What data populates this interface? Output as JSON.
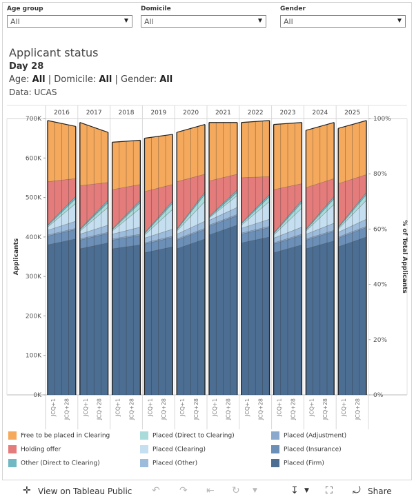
{
  "filters": [
    {
      "label": "Age group",
      "value": "All"
    },
    {
      "label": "Domicile",
      "value": "All"
    },
    {
      "label": "Gender",
      "value": "All"
    }
  ],
  "header": {
    "title": "Applicant status",
    "day": "Day 28",
    "age_label": "Age: ",
    "age_value": "All",
    "dom_label": " | Domicile: ",
    "dom_value": "All",
    "gender_label": " | Gender: ",
    "gender_value": "All",
    "source": "Data: UCAS"
  },
  "chart_data": {
    "type": "area",
    "title": "Applicant status",
    "ylabel": "Applicants",
    "y2label": "% of Total Applicants",
    "ylim": [
      0,
      700000
    ],
    "y2lim": [
      0,
      100
    ],
    "yticks": [
      "0K",
      "100K",
      "200K",
      "300K",
      "400K",
      "500K",
      "600K",
      "700K"
    ],
    "y2ticks": [
      "0%",
      "20%",
      "40%",
      "60%",
      "80%",
      "100%"
    ],
    "years": [
      "2016",
      "2017",
      "2018",
      "2019",
      "2020",
      "2021",
      "2022",
      "2023",
      "2024",
      "2025"
    ],
    "day_ticks": [
      "JCQ+1",
      "JCQ+28"
    ],
    "colors": {
      "free": "#f5a95c",
      "holding": "#e57c7c",
      "other_direct": "#71b7c4",
      "placed_direct": "#a8dbd9",
      "placed_clearing": "#c5dff0",
      "placed_other": "#9dbcdc",
      "placed_adjustment": "#8aa9cc",
      "placed_insurance": "#6b8fb6",
      "placed_firm": "#4d6e93"
    },
    "series_order": [
      "placed_firm",
      "placed_insurance",
      "placed_adjustment",
      "placed_other",
      "placed_clearing",
      "placed_direct",
      "other_direct",
      "holding",
      "free"
    ],
    "series_names": {
      "free": "Free to be placed in Clearing",
      "holding": "Holding offer",
      "other_direct": "Other (Direct to Clearing)",
      "placed_direct": "Placed (Direct to Clearing)",
      "placed_clearing": "Placed (Clearing)",
      "placed_other": "Placed (Other)",
      "placed_adjustment": "Placed (Adjustment)",
      "placed_insurance": "Placed (Insurance)",
      "placed_firm": "Placed (Firm)"
    },
    "panels": [
      {
        "year": "2016",
        "total": [
          695000,
          680000
        ],
        "placed_firm": [
          380000,
          395000
        ],
        "placed_insurance": [
          22000,
          24000
        ],
        "placed_adjustment": [
          3000,
          3000
        ],
        "placed_other": [
          12000,
          18000
        ],
        "placed_clearing": [
          8000,
          45000
        ],
        "placed_direct": [
          3000,
          12000
        ],
        "other_direct": [
          2000,
          6000
        ],
        "holding": [
          110000,
          45000
        ]
      },
      {
        "year": "2017",
        "total": [
          690000,
          665000
        ],
        "placed_firm": [
          370000,
          385000
        ],
        "placed_insurance": [
          22000,
          24000
        ],
        "placed_adjustment": [
          3000,
          3000
        ],
        "placed_other": [
          12000,
          18000
        ],
        "placed_clearing": [
          8000,
          45000
        ],
        "placed_direct": [
          3000,
          12000
        ],
        "other_direct": [
          2000,
          6000
        ],
        "holding": [
          110000,
          45000
        ]
      },
      {
        "year": "2018",
        "total": [
          640000,
          645000
        ],
        "placed_firm": [
          370000,
          380000
        ],
        "placed_insurance": [
          22000,
          24000
        ],
        "placed_adjustment": [
          3000,
          3000
        ],
        "placed_other": [
          12000,
          18000
        ],
        "placed_clearing": [
          8000,
          48000
        ],
        "placed_direct": [
          3000,
          14000
        ],
        "other_direct": [
          2000,
          6000
        ],
        "holding": [
          100000,
          40000
        ]
      },
      {
        "year": "2019",
        "total": [
          650000,
          660000
        ],
        "placed_firm": [
          360000,
          375000
        ],
        "placed_insurance": [
          22000,
          24000
        ],
        "placed_adjustment": [
          3000,
          3000
        ],
        "placed_other": [
          12000,
          18000
        ],
        "placed_clearing": [
          8000,
          50000
        ],
        "placed_direct": [
          3000,
          15000
        ],
        "other_direct": [
          2000,
          6000
        ],
        "holding": [
          105000,
          42000
        ]
      },
      {
        "year": "2020",
        "total": [
          665000,
          685000
        ],
        "placed_firm": [
          370000,
          395000
        ],
        "placed_insurance": [
          22000,
          24000
        ],
        "placed_adjustment": [
          3000,
          3000
        ],
        "placed_other": [
          12000,
          18000
        ],
        "placed_clearing": [
          8000,
          50000
        ],
        "placed_direct": [
          3000,
          18000
        ],
        "other_direct": [
          2000,
          6000
        ],
        "holding": [
          120000,
          45000
        ]
      },
      {
        "year": "2021",
        "total": [
          690000,
          690000
        ],
        "placed_firm": [
          405000,
          430000
        ],
        "placed_insurance": [
          22000,
          24000
        ],
        "placed_adjustment": [
          3000,
          3000
        ],
        "placed_other": [
          12000,
          18000
        ],
        "placed_clearing": [
          6000,
          30000
        ],
        "placed_direct": [
          2000,
          8000
        ],
        "other_direct": [
          2000,
          6000
        ],
        "holding": [
          90000,
          40000
        ]
      },
      {
        "year": "2022",
        "total": [
          690000,
          695000
        ],
        "placed_firm": [
          385000,
          400000
        ],
        "placed_insurance": [
          22000,
          24000
        ],
        "placed_adjustment": [
          3000,
          3000
        ],
        "placed_other": [
          12000,
          18000
        ],
        "placed_clearing": [
          8000,
          45000
        ],
        "placed_direct": [
          3000,
          12000
        ],
        "other_direct": [
          2000,
          6000
        ],
        "holding": [
          115000,
          45000
        ]
      },
      {
        "year": "2023",
        "total": [
          685000,
          690000
        ],
        "placed_firm": [
          360000,
          380000
        ],
        "placed_insurance": [
          22000,
          24000
        ],
        "placed_adjustment": [
          3000,
          3000
        ],
        "placed_other": [
          12000,
          18000
        ],
        "placed_clearing": [
          8000,
          48000
        ],
        "placed_direct": [
          3000,
          14000
        ],
        "other_direct": [
          2000,
          6000
        ],
        "holding": [
          110000,
          42000
        ]
      },
      {
        "year": "2024",
        "total": [
          670000,
          690000
        ],
        "placed_firm": [
          370000,
          390000
        ],
        "placed_insurance": [
          22000,
          24000
        ],
        "placed_adjustment": [
          3000,
          3000
        ],
        "placed_other": [
          12000,
          18000
        ],
        "placed_clearing": [
          8000,
          48000
        ],
        "placed_direct": [
          3000,
          14000
        ],
        "other_direct": [
          2000,
          6000
        ],
        "holding": [
          105000,
          45000
        ]
      },
      {
        "year": "2025",
        "total": [
          675000,
          695000
        ],
        "placed_firm": [
          375000,
          400000
        ],
        "placed_insurance": [
          22000,
          24000
        ],
        "placed_adjustment": [
          3000,
          3000
        ],
        "placed_other": [
          12000,
          18000
        ],
        "placed_clearing": [
          8000,
          48000
        ],
        "placed_direct": [
          3000,
          14000
        ],
        "other_direct": [
          2000,
          6000
        ],
        "holding": [
          110000,
          45000
        ]
      }
    ]
  },
  "legend": [
    {
      "key": "free",
      "label": "Free to be placed in Clearing"
    },
    {
      "key": "holding",
      "label": "Holding offer"
    },
    {
      "key": "other_direct",
      "label": "Other (Direct to Clearing)"
    },
    {
      "key": "placed_direct",
      "label": "Placed (Direct to Clearing)"
    },
    {
      "key": "placed_clearing",
      "label": "Placed (Clearing)"
    },
    {
      "key": "placed_other",
      "label": "Placed (Other)"
    },
    {
      "key": "placed_adjustment",
      "label": "Placed (Adjustment)"
    },
    {
      "key": "placed_insurance",
      "label": "Placed (Insurance)"
    },
    {
      "key": "placed_firm",
      "label": "Placed (Firm)"
    }
  ],
  "toolbar": {
    "view_label": "View on Tableau Public",
    "share_label": "Share",
    "tableau_icon": "tableau-logo-icon",
    "undo_icon": "undo-icon",
    "redo_icon": "redo-icon",
    "revert_icon": "revert-icon",
    "download_icon": "download-icon",
    "fullscreen_icon": "fullscreen-icon",
    "share_icon": "share-icon"
  }
}
